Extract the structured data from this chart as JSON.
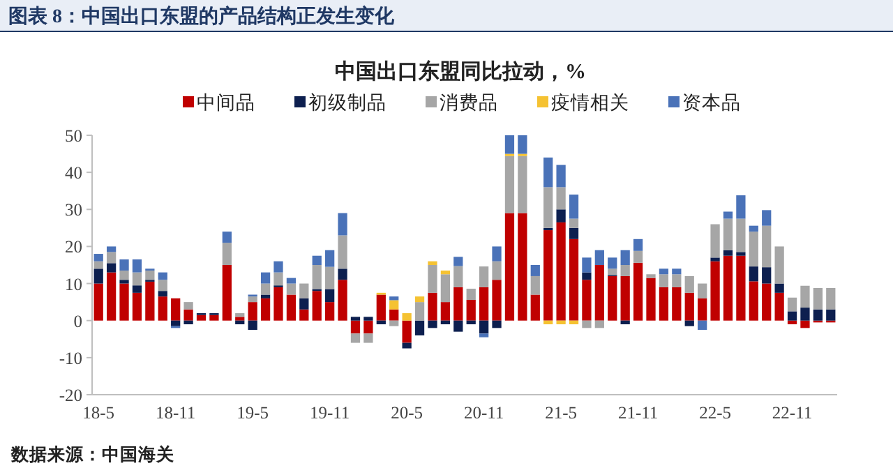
{
  "chart_data": {
    "type": "bar",
    "stacked": true,
    "title": "图表 8：中国出口东盟的产品结构正发生变化",
    "subtitle": "中国出口东盟同比拉动，%",
    "categories": [
      "18-5",
      null,
      null,
      null,
      null,
      null,
      "18-11",
      null,
      null,
      null,
      null,
      null,
      "19-5",
      null,
      null,
      null,
      null,
      null,
      "19-11",
      null,
      null,
      null,
      null,
      null,
      "20-5",
      null,
      null,
      null,
      null,
      null,
      "20-11",
      null,
      null,
      null,
      null,
      null,
      "21-5",
      null,
      null,
      null,
      null,
      null,
      "21-11",
      null,
      null,
      null,
      null,
      null,
      "22-5",
      null,
      null,
      null,
      null,
      null,
      "22-11",
      null,
      null,
      null
    ],
    "series": [
      {
        "name": "中间品",
        "color": "#c00000",
        "values": [
          10,
          13,
          10,
          7.5,
          10.5,
          6.5,
          6,
          3,
          1.5,
          1.5,
          15,
          1,
          5,
          6,
          9,
          7,
          3,
          8,
          5,
          11,
          -3.5,
          -3.5,
          7,
          3,
          -6,
          0,
          7.5,
          5,
          9,
          5.6,
          9,
          11,
          29,
          29,
          7,
          24.4,
          26.5,
          22,
          11,
          15,
          12,
          12,
          15.6,
          11.5,
          9,
          9,
          7.5,
          6,
          16,
          17.5,
          17.5,
          10.6,
          10,
          7.5,
          -1,
          -2,
          -0.5,
          -0.5
        ]
      },
      {
        "name": "初级制品",
        "color": "#0d1f4f",
        "values": [
          4,
          2.5,
          1,
          2,
          0.5,
          1.5,
          -1.5,
          -1,
          0.5,
          0.5,
          0,
          -1,
          -2.5,
          1,
          0.5,
          0,
          3,
          0.5,
          3.5,
          3,
          1,
          1,
          -1,
          0,
          -1.5,
          -4,
          -2,
          -1,
          -3,
          -1,
          -3.5,
          -2,
          0,
          0,
          0,
          0.6,
          3.5,
          3,
          2,
          0,
          0.3,
          -1,
          0,
          0,
          0,
          0,
          -1.5,
          0,
          1,
          1.5,
          1,
          4,
          4.4,
          2.5,
          2.5,
          3.5,
          3,
          3
        ]
      },
      {
        "name": "消费品",
        "color": "#a6a6a6",
        "values": [
          2,
          3,
          2.5,
          3.5,
          2.5,
          3,
          0,
          2,
          0,
          0,
          6,
          1,
          1.5,
          3,
          3.5,
          3,
          4,
          6.5,
          6,
          9,
          -2.5,
          -2.5,
          null,
          -1.5,
          0,
          5,
          7.5,
          7.5,
          5.7,
          3,
          5.6,
          5,
          15.4,
          15.4,
          5,
          11,
          6,
          2.5,
          -2,
          -2,
          1.7,
          3,
          3.2,
          1,
          3.5,
          3.5,
          4.5,
          4,
          9,
          8.5,
          9,
          9.4,
          11.2,
          10,
          3.7,
          5.9,
          5.8,
          5.8
        ]
      },
      {
        "name": "疫情相关",
        "color": "#f5c232",
        "values": [
          0,
          0,
          0,
          0,
          0,
          0,
          0,
          0,
          0,
          0,
          0,
          0,
          0,
          0,
          0,
          0,
          0,
          0,
          0,
          0,
          0,
          0,
          0.5,
          2.5,
          2,
          1.5,
          1,
          1,
          0,
          0,
          0,
          0,
          0.6,
          0.6,
          0,
          -1,
          -1,
          -1,
          0,
          0,
          0,
          0,
          0,
          0,
          0,
          0,
          0,
          0,
          0,
          0,
          0,
          0,
          0,
          0,
          0,
          0,
          0,
          0
        ]
      },
      {
        "name": "资本品",
        "color": "#4a72b8",
        "values": [
          2,
          1.5,
          3,
          3.5,
          0.5,
          2,
          -0.5,
          0,
          0,
          0,
          3,
          0,
          0.5,
          3,
          3,
          1.5,
          0,
          2.5,
          4.5,
          6,
          0,
          0,
          0,
          1,
          0,
          0,
          0,
          0,
          2.5,
          0,
          -1,
          4,
          5,
          5,
          3,
          8,
          6,
          6.5,
          4,
          4,
          3,
          4,
          3.2,
          0,
          1.5,
          1.5,
          0,
          -2.5,
          0,
          1.9,
          6.3,
          1.6,
          4.2,
          0,
          0,
          0,
          0,
          0
        ]
      }
    ],
    "ylim": [
      -20,
      50
    ],
    "yticks": [
      -20,
      -10,
      0,
      10,
      20,
      30,
      40,
      50
    ],
    "grid": false,
    "legend": "top",
    "annotations": [
      "数据来源：中国海关"
    ]
  }
}
